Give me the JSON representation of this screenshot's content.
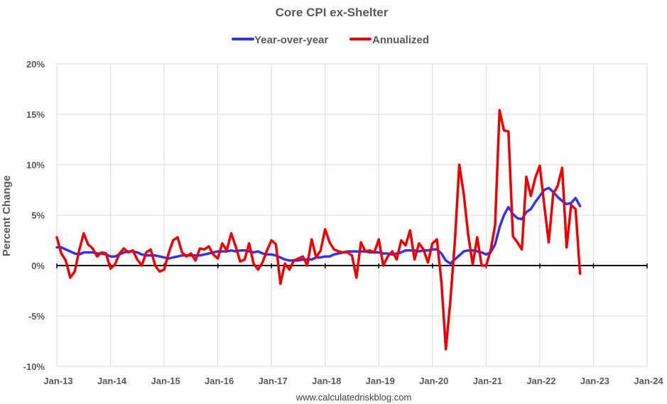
{
  "chart_data": {
    "type": "line",
    "title": "Core CPI ex-Shelter",
    "ylabel": "Percent Change",
    "xlabel": "",
    "credit": "www.calculatedriskblog.com",
    "ylim": [
      -10,
      20
    ],
    "yticks": [
      -10,
      -5,
      0,
      5,
      10,
      15,
      20
    ],
    "ytick_labels": [
      "-10%",
      "-5%",
      "0%",
      "5%",
      "10%",
      "15%",
      "20%"
    ],
    "xlim": [
      "2013-01",
      "2024-01"
    ],
    "xtick_labels": [
      "Jan-13",
      "Jan-14",
      "Jan-15",
      "Jan-16",
      "Jan-17",
      "Jan-18",
      "Jan-19",
      "Jan-20",
      "Jan-21",
      "Jan-22",
      "Jan-23",
      "Jan-24"
    ],
    "grid": true,
    "legend_position": "top-center",
    "start_month": "2013-01",
    "series": [
      {
        "name": "Year-over-year",
        "color": "#3333ee",
        "values": [
          1.8,
          1.8,
          1.6,
          1.4,
          1.2,
          1.1,
          1.3,
          1.3,
          1.3,
          1.2,
          1.2,
          1.1,
          0.9,
          0.9,
          1.1,
          1.3,
          1.4,
          1.4,
          1.3,
          1.1,
          1.0,
          1.0,
          1.0,
          0.9,
          0.8,
          0.7,
          0.8,
          0.9,
          1.0,
          1.0,
          1.0,
          1.0,
          1.0,
          1.1,
          1.2,
          1.3,
          1.4,
          1.4,
          1.4,
          1.5,
          1.4,
          1.5,
          1.5,
          1.4,
          1.3,
          1.4,
          1.2,
          1.1,
          1.1,
          1.0,
          0.8,
          0.6,
          0.5,
          0.5,
          0.5,
          0.6,
          0.6,
          0.6,
          0.8,
          0.8,
          0.9,
          0.9,
          1.1,
          1.2,
          1.3,
          1.4,
          1.4,
          1.4,
          1.4,
          1.4,
          1.3,
          1.3,
          1.3,
          1.2,
          1.2,
          1.1,
          1.2,
          1.3,
          1.5,
          1.5,
          1.5,
          1.4,
          1.5,
          1.5,
          1.6,
          1.6,
          1.2,
          0.5,
          0.2,
          0.6,
          1.0,
          1.4,
          1.5,
          1.5,
          1.4,
          1.3,
          1.1,
          1.3,
          2.1,
          3.8,
          5.0,
          5.8,
          5.1,
          4.7,
          4.6,
          5.3,
          5.6,
          6.3,
          6.9,
          7.5,
          7.7,
          7.3,
          6.8,
          6.4,
          6.1,
          6.2,
          6.7,
          5.9
        ]
      },
      {
        "name": "Annualized",
        "color": "#ee0000",
        "values": [
          2.8,
          1.2,
          0.5,
          -1.2,
          -0.6,
          1.5,
          3.2,
          2.1,
          1.7,
          0.9,
          1.3,
          1.2,
          -0.3,
          0.1,
          1.2,
          1.7,
          1.3,
          1.5,
          0.6,
          0.0,
          1.3,
          1.6,
          0.0,
          -0.6,
          -0.4,
          1.2,
          2.5,
          2.8,
          1.3,
          0.9,
          1.2,
          0.5,
          1.7,
          1.6,
          1.9,
          1.1,
          0.7,
          2.2,
          1.5,
          3.2,
          1.9,
          0.4,
          0.6,
          2.2,
          0.2,
          -0.4,
          0.3,
          1.5,
          2.5,
          2.1,
          -1.8,
          0.2,
          -0.4,
          0.5,
          0.7,
          0.9,
          0.0,
          2.6,
          0.8,
          1.5,
          3.6,
          2.3,
          1.6,
          1.4,
          1.3,
          1.3,
          1.0,
          -1.2,
          2.3,
          1.4,
          1.5,
          1.3,
          2.6,
          0.0,
          0.9,
          1.4,
          0.6,
          2.5,
          2.0,
          3.5,
          0.6,
          2.2,
          1.6,
          0.3,
          2.2,
          2.6,
          -1.6,
          -8.3,
          -3.5,
          2.3,
          10.0,
          7.1,
          3.0,
          0.1,
          2.8,
          0.0,
          0.0,
          1.5,
          4.0,
          15.4,
          13.4,
          13.3,
          2.9,
          2.3,
          1.6,
          8.8,
          6.9,
          8.7,
          9.9,
          6.0,
          2.3,
          7.1,
          7.9,
          9.7,
          1.8,
          6.0,
          5.6,
          -0.8
        ]
      }
    ]
  }
}
